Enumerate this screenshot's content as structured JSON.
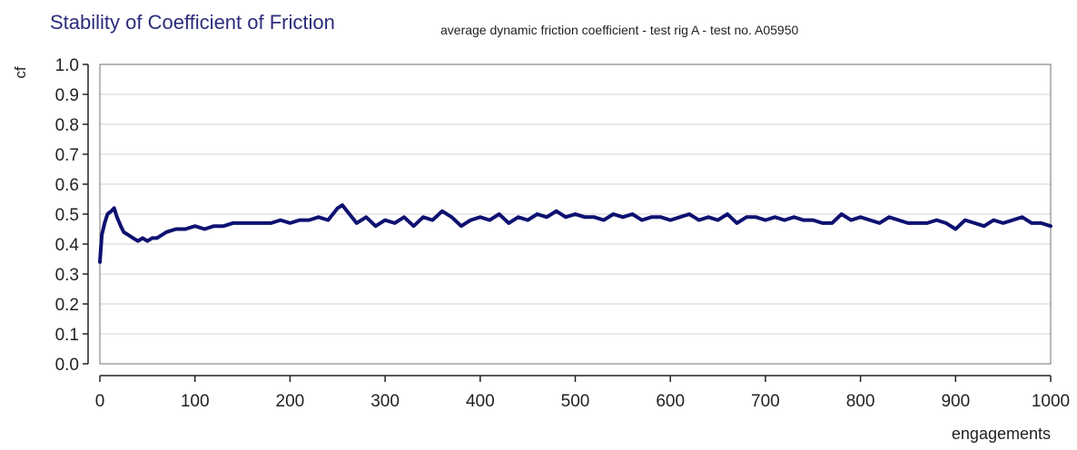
{
  "chart_data": {
    "type": "line",
    "title": "Stability of Coefficient of Friction",
    "subtitle": "average dynamic friction coefficient - test rig A - test no. A05950",
    "xlabel": "engagements",
    "ylabel": "cf",
    "xlim": [
      0,
      1000
    ],
    "ylim": [
      0.0,
      1.0
    ],
    "x_ticks": [
      0,
      100,
      200,
      300,
      400,
      500,
      600,
      700,
      800,
      900,
      1000
    ],
    "x_tick_labels": [
      "0",
      "100",
      "200",
      "300",
      "400",
      "500",
      "600",
      "700",
      "800",
      "900",
      "1000"
    ],
    "y_ticks": [
      0.0,
      0.1,
      0.2,
      0.3,
      0.4,
      0.5,
      0.6,
      0.7,
      0.8,
      0.9,
      1.0
    ],
    "y_tick_labels": [
      "0.0",
      "0.1",
      "0.2",
      "0.3",
      "0.4",
      "0.5",
      "0.6",
      "0.7",
      "0.8",
      "0.9",
      "1.0"
    ],
    "grid": "horizontal",
    "colors": {
      "line": "#0d1170",
      "title": "#2b2d7a",
      "grid": "#d0d0d0",
      "frame": "#888888"
    },
    "series": [
      {
        "x": [
          0,
          2,
          5,
          8,
          12,
          15,
          18,
          22,
          25,
          30,
          35,
          40,
          45,
          50,
          55,
          60,
          70,
          80,
          90,
          100,
          110,
          120,
          130,
          140,
          150,
          160,
          170,
          180,
          190,
          200,
          210,
          220,
          230,
          240,
          250,
          255,
          260,
          270,
          280,
          290,
          300,
          310,
          320,
          330,
          340,
          350,
          360,
          370,
          380,
          390,
          400,
          410,
          420,
          430,
          440,
          450,
          460,
          470,
          480,
          490,
          500,
          510,
          520,
          530,
          540,
          550,
          560,
          570,
          580,
          590,
          600,
          610,
          620,
          630,
          640,
          650,
          660,
          670,
          680,
          690,
          700,
          710,
          720,
          730,
          740,
          750,
          760,
          770,
          780,
          790,
          800,
          810,
          820,
          830,
          840,
          850,
          860,
          870,
          880,
          890,
          900,
          910,
          920,
          930,
          940,
          950,
          960,
          970,
          980,
          990,
          1000
        ],
        "values": [
          0.34,
          0.43,
          0.47,
          0.5,
          0.51,
          0.52,
          0.49,
          0.46,
          0.44,
          0.43,
          0.42,
          0.41,
          0.42,
          0.41,
          0.42,
          0.42,
          0.44,
          0.45,
          0.45,
          0.46,
          0.45,
          0.46,
          0.46,
          0.47,
          0.47,
          0.47,
          0.47,
          0.47,
          0.48,
          0.47,
          0.48,
          0.48,
          0.49,
          0.48,
          0.52,
          0.53,
          0.51,
          0.47,
          0.49,
          0.46,
          0.48,
          0.47,
          0.49,
          0.46,
          0.49,
          0.48,
          0.51,
          0.49,
          0.46,
          0.48,
          0.49,
          0.48,
          0.5,
          0.47,
          0.49,
          0.48,
          0.5,
          0.49,
          0.51,
          0.49,
          0.5,
          0.49,
          0.49,
          0.48,
          0.5,
          0.49,
          0.5,
          0.48,
          0.49,
          0.49,
          0.48,
          0.49,
          0.5,
          0.48,
          0.49,
          0.48,
          0.5,
          0.47,
          0.49,
          0.49,
          0.48,
          0.49,
          0.48,
          0.49,
          0.48,
          0.48,
          0.47,
          0.47,
          0.5,
          0.48,
          0.49,
          0.48,
          0.47,
          0.49,
          0.48,
          0.47,
          0.47,
          0.47,
          0.48,
          0.47,
          0.45,
          0.48,
          0.47,
          0.46,
          0.48,
          0.47,
          0.48,
          0.49,
          0.47,
          0.47,
          0.46
        ]
      }
    ]
  }
}
